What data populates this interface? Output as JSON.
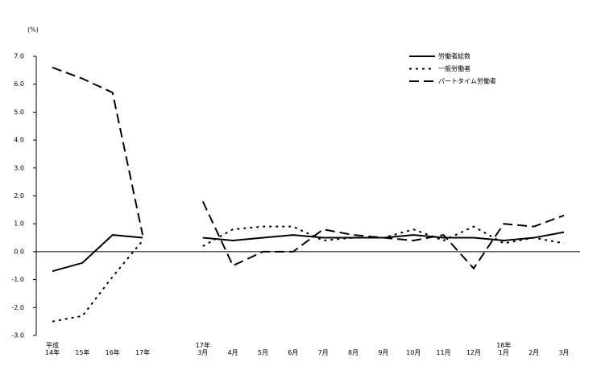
{
  "chart_data": {
    "type": "line",
    "y_label": "(%)",
    "categories": [
      "平成\n14年",
      "15年",
      "16年",
      "17年",
      null,
      "17年\n3月",
      "4月",
      "5月",
      "6月",
      "7月",
      "8月",
      "9月",
      "10月",
      "11月",
      "12月",
      "18年\n1月",
      "2月",
      "3月"
    ],
    "series": [
      {
        "name": "労働者総数",
        "color": "#000000",
        "dash": "solid",
        "values": [
          -0.7,
          -0.4,
          0.6,
          0.5,
          null,
          0.5,
          0.4,
          0.5,
          0.6,
          0.5,
          0.5,
          0.5,
          0.6,
          0.5,
          0.5,
          0.4,
          0.5,
          0.7
        ]
      },
      {
        "name": "一般労働者",
        "color": "#000000",
        "dash": "dotted",
        "values": [
          -2.5,
          -2.3,
          -0.9,
          0.4,
          null,
          0.2,
          0.8,
          0.9,
          0.9,
          0.4,
          0.5,
          0.5,
          0.8,
          0.4,
          0.9,
          0.3,
          0.5,
          0.3
        ]
      },
      {
        "name": "パートタイム労働者",
        "color": "#000000",
        "dash": "dashed",
        "values": [
          6.6,
          6.2,
          5.7,
          0.6,
          null,
          1.8,
          -0.5,
          0.0,
          0.0,
          0.8,
          0.6,
          0.5,
          0.4,
          0.6,
          -0.6,
          1.0,
          0.9,
          1.3
        ]
      }
    ],
    "ylim": [
      -3.0,
      7.0
    ],
    "yticks": [
      {
        "value": -3,
        "label": "-3.0"
      },
      {
        "value": -2,
        "label": "-2.0"
      },
      {
        "value": -1,
        "label": "-1.0"
      },
      {
        "value": 0,
        "label": "0.0"
      },
      {
        "value": 1,
        "label": "1.0"
      },
      {
        "value": 2,
        "label": "2.0"
      },
      {
        "value": 3,
        "label": "3.0"
      },
      {
        "value": 4,
        "label": "4.0"
      },
      {
        "value": 5,
        "label": "5.0"
      },
      {
        "value": 6,
        "label": "6.0"
      },
      {
        "value": 7,
        "label": "7.0"
      }
    ],
    "legend": "top-right"
  }
}
